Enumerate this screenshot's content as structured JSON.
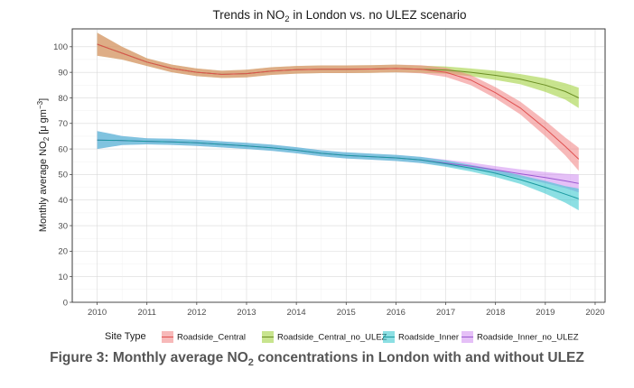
{
  "chart_data": {
    "type": "line",
    "title": "Trends in NO",
    "title_sub": "2",
    "title_suffix": " in London vs. no ULEZ scenario",
    "ylabel": "Monthly average NO",
    "ylabel_sub": "2",
    "ylabel_unit": " [μ gm",
    "ylabel_sup": "−3",
    "ylabel_end": "]",
    "xlim": [
      2009.5,
      2020.2
    ],
    "ylim": [
      0,
      107
    ],
    "x_ticks": [
      "2010",
      "2011",
      "2012",
      "2013",
      "2014",
      "2015",
      "2016",
      "2017",
      "2018",
      "2019",
      "2020"
    ],
    "y_ticks": [
      "0",
      "10",
      "20",
      "30",
      "40",
      "50",
      "60",
      "70",
      "80",
      "90",
      "100"
    ],
    "legend_title": "Site Type",
    "series": [
      {
        "name": "Roadside_Central_no_ULEZ",
        "fill": "#9acd32",
        "line": "#6b8e23",
        "x": [
          2010,
          2010.5,
          2011,
          2011.5,
          2012,
          2012.5,
          2013,
          2013.5,
          2014,
          2014.5,
          2015,
          2015.5,
          2016,
          2016.5,
          2017,
          2017.5,
          2018,
          2018.5,
          2019,
          2019.4,
          2019.67
        ],
        "y": [
          101,
          97.5,
          94,
          91.5,
          90,
          89.2,
          89.5,
          90.5,
          91,
          91.2,
          91.2,
          91.3,
          91.5,
          91.2,
          90.9,
          90,
          88.8,
          87.3,
          85,
          82.5,
          80
        ],
        "lower": [
          96.5,
          95,
          92.5,
          90,
          88.5,
          87.8,
          88,
          89,
          89.5,
          89.7,
          89.7,
          89.8,
          90,
          89.8,
          89.5,
          88.5,
          87,
          85.3,
          82.3,
          79.3,
          76
        ]
      },
      {
        "name": "Roadside_Central",
        "fill": "#f08080",
        "line": "#e05050",
        "x": [
          2010,
          2010.5,
          2011,
          2011.5,
          2012,
          2012.5,
          2013,
          2013.5,
          2014,
          2014.5,
          2015,
          2015.5,
          2016,
          2016.5,
          2017,
          2017.5,
          2018,
          2018.5,
          2019,
          2019.4,
          2019.67
        ],
        "y": [
          101,
          97.5,
          94,
          91.5,
          90,
          89.2,
          89.5,
          90.5,
          91,
          91.2,
          91.2,
          91.3,
          91.5,
          91.2,
          90,
          87,
          82,
          76,
          68,
          61,
          56
        ],
        "lower": [
          96.5,
          95,
          92.5,
          90,
          88.5,
          87.8,
          88,
          89,
          89.5,
          89.7,
          89.7,
          89.8,
          90,
          89.6,
          88.2,
          85,
          79.8,
          73.5,
          65,
          57.5,
          51.5
        ],
        "upper": [
          105.5,
          100,
          95.5,
          93,
          91.5,
          90.6,
          91,
          92,
          92.5,
          92.7,
          92.7,
          92.8,
          93,
          92.8,
          91.8,
          89,
          84.2,
          78.5,
          71,
          64.5,
          60.5
        ]
      },
      {
        "name": "Roadside_Inner_no_ULEZ",
        "fill": "#d08cf0",
        "line": "#9b59d0",
        "x": [
          2010,
          2010.5,
          2011,
          2011.5,
          2012,
          2012.5,
          2013,
          2013.5,
          2014,
          2014.5,
          2015,
          2015.5,
          2016,
          2016.5,
          2017,
          2017.5,
          2018,
          2018.5,
          2019,
          2019.4,
          2019.67
        ],
        "y": [
          63.5,
          63.3,
          63,
          62.8,
          62.4,
          61.8,
          61.2,
          60.5,
          59.5,
          58.3,
          57.5,
          57,
          56.5,
          55.7,
          54.5,
          53.3,
          51.8,
          50.3,
          48.8,
          47.5,
          46.5
        ],
        "lower": [
          60,
          61.5,
          61.8,
          61.6,
          61.2,
          60.6,
          60,
          59.3,
          58.3,
          57.1,
          56.3,
          55.8,
          55.3,
          54.5,
          53.3,
          52,
          50.5,
          48.7,
          46.6,
          44.7,
          43
        ],
        "upper": [
          67,
          65.1,
          64.2,
          64,
          63.6,
          63,
          62.4,
          61.7,
          60.7,
          59.5,
          58.7,
          58.2,
          57.7,
          56.9,
          55.8,
          54.7,
          53.3,
          52,
          51,
          50.3,
          50
        ]
      },
      {
        "name": "Roadside_Inner",
        "fill": "#2ec4cc",
        "line": "#1a9aa0",
        "x": [
          2010,
          2010.5,
          2011,
          2011.5,
          2012,
          2012.5,
          2013,
          2013.5,
          2014,
          2014.5,
          2015,
          2015.5,
          2016,
          2016.5,
          2017,
          2017.5,
          2018,
          2018.5,
          2019,
          2019.4,
          2019.67
        ],
        "y": [
          63.5,
          63.3,
          63,
          62.8,
          62.4,
          61.8,
          61.2,
          60.5,
          59.5,
          58.3,
          57.5,
          57,
          56.5,
          55.7,
          54.2,
          52.5,
          50.5,
          48,
          45,
          42.3,
          40.5
        ],
        "lower": [
          60,
          61.5,
          61.8,
          61.6,
          61.2,
          60.6,
          60,
          59.3,
          58.3,
          57.1,
          56.3,
          55.8,
          55.3,
          54.5,
          53,
          51.2,
          49,
          46.3,
          42.5,
          39,
          36
        ],
        "upper": [
          67,
          65.1,
          64.2,
          64,
          63.6,
          63,
          62.4,
          61.7,
          60.7,
          59.5,
          58.7,
          58.2,
          57.7,
          56.9,
          55.5,
          53.8,
          52,
          49.7,
          47.5,
          45.5,
          44.5
        ]
      }
    ],
    "legend_order": [
      "Roadside_Central",
      "Roadside_Central_no_ULEZ",
      "Roadside_Inner",
      "Roadside_Inner_no_ULEZ"
    ]
  },
  "caption": {
    "prefix": "Figure 3: Monthly average NO",
    "sub": "2",
    "suffix": " concentrations in London with and without ULEZ"
  }
}
